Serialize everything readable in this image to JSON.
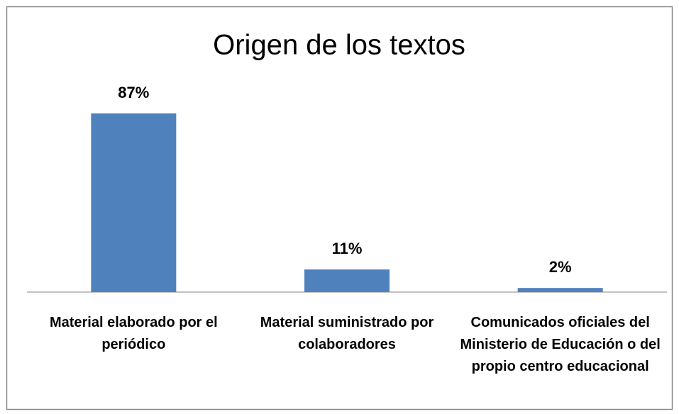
{
  "chart_data": {
    "type": "bar",
    "title": "Origen de los textos",
    "categories": [
      "Material elaborado por el periódico",
      "Material suministrado por colaboradores",
      "Comunicados oficiales del Ministerio de Educación o del propio centro educacional"
    ],
    "values": [
      87,
      11,
      2
    ],
    "value_labels": [
      "87%",
      "11%",
      "2%"
    ],
    "color": "#4f81bd"
  }
}
